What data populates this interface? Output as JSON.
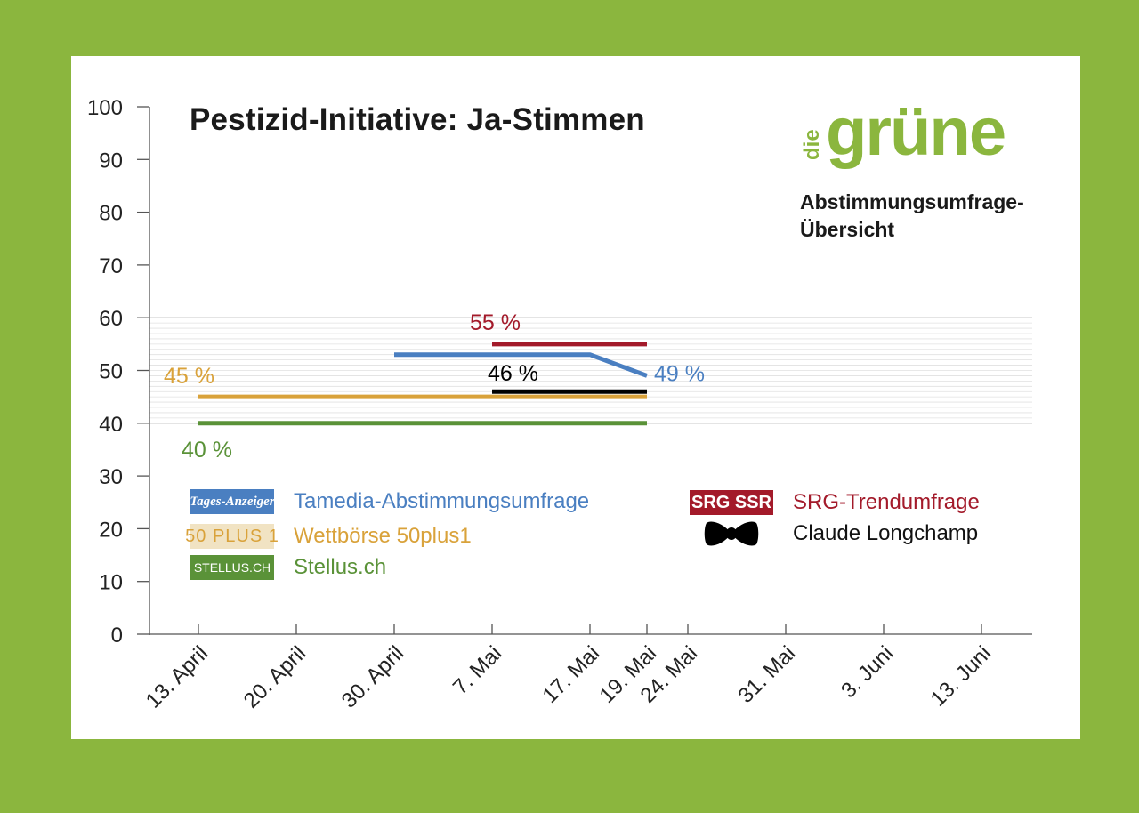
{
  "title": "Pestizid-Initiative: Ja-Stimmen",
  "logo_text": {
    "small": "die",
    "big": "grüne"
  },
  "subtitle_lines": [
    "Abstimmungsumfrage-",
    "Übersicht"
  ],
  "colors": {
    "background": "#8bb63e",
    "card": "#ffffff",
    "tamedia": "#4a7fc1",
    "srg": "#a31a2a",
    "wettboerse": "#d9a23a",
    "longchamp": "#000000",
    "stellus": "#5a9238",
    "logo_green": "#8bb63e"
  },
  "legend": {
    "tamedia": {
      "badge": "Tages-Anzeiger",
      "label": "Tamedia-Abstimmungsumfrage"
    },
    "wettboerse": {
      "badge": "50 PLUS 1",
      "label": "Wettbörse 50plus1"
    },
    "stellus": {
      "badge": "STELLUS.CH",
      "label": "Stellus.ch"
    },
    "srg": {
      "badge": "SRG SSR",
      "label": "SRG-Trendumfrage"
    },
    "longchamp": {
      "badge_icon": "bow-tie-icon",
      "label": "Claude Longchamp"
    }
  },
  "chart_data": {
    "type": "line",
    "title": "Pestizid-Initiative: Ja-Stimmen",
    "x": [
      "13. April",
      "20. April",
      "30. April",
      "7. Mai",
      "17. Mai",
      "19. Mai",
      "24. Mai",
      "31. Mai",
      "3. Juni",
      "13. Juni"
    ],
    "ylim": [
      0,
      100
    ],
    "yticks": [
      0,
      10,
      20,
      30,
      40,
      50,
      60,
      70,
      80,
      90,
      100
    ],
    "highlight_band": [
      40,
      60
    ],
    "series": [
      {
        "name": "Tamedia-Abstimmungsumfrage",
        "key": "tamedia",
        "points": [
          [
            "30. April",
            53
          ],
          [
            "17. Mai",
            53
          ],
          [
            "19. Mai",
            49
          ]
        ],
        "end_label": "49 %"
      },
      {
        "name": "SRG-Trendumfrage",
        "key": "srg",
        "points": [
          [
            "7. Mai",
            55
          ],
          [
            "19. Mai",
            55
          ]
        ],
        "end_label": "55 %"
      },
      {
        "name": "Wettbörse 50plus1",
        "key": "wettboerse",
        "points": [
          [
            "13. April",
            45
          ],
          [
            "19. Mai",
            45
          ]
        ],
        "end_label": "45 %"
      },
      {
        "name": "Claude Longchamp",
        "key": "longchamp",
        "points": [
          [
            "7. Mai",
            46
          ],
          [
            "19. Mai",
            46
          ]
        ],
        "end_label": "46 %"
      },
      {
        "name": "Stellus.ch",
        "key": "stellus",
        "points": [
          [
            "13. April",
            40
          ],
          [
            "19. Mai",
            40
          ]
        ],
        "end_label": "40 %"
      }
    ]
  }
}
